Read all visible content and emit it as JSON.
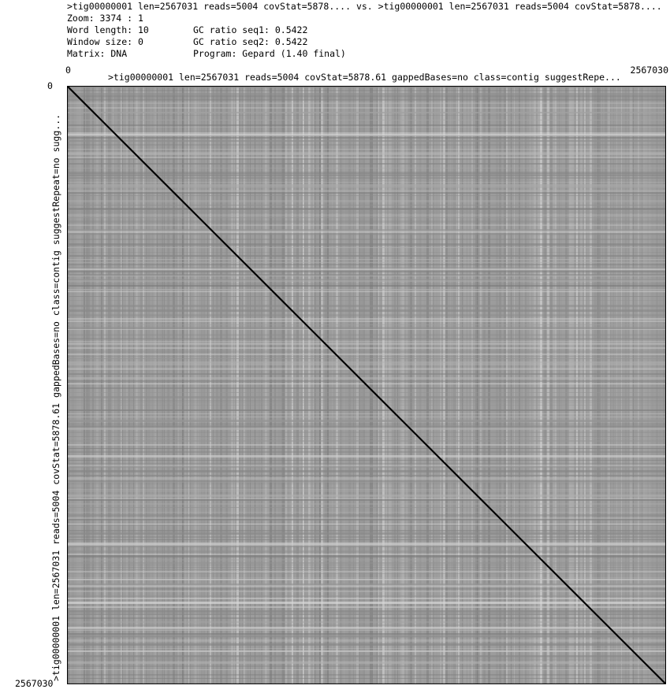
{
  "header": {
    "line1": ">tig00000001 len=2567031 reads=5004 covStat=5878.... vs. >tig00000001 len=2567031 reads=5004 covStat=5878....",
    "zoom": "Zoom: 3374 : 1",
    "word_length": "Word length: 10",
    "window_size": "Window size: 0",
    "matrix": "Matrix: DNA",
    "gc_seq1": "GC ratio seq1: 0.5422",
    "gc_seq2": "GC ratio seq2: 0.5422",
    "program": "Program: Gepard (1.40 final)"
  },
  "chart_data": {
    "type": "heatmap",
    "title": "",
    "xlabel": ">tig00000001 len=2567031 reads=5004 covStat=5878.61 gappedBases=no class=contig suggestRepe...",
    "ylabel": ">tig00000001 len=2567031 reads=5004 covStat=5878.61 gappedBases=no class=contig suggestRepeat=no sugg...",
    "x_ticks": [
      "0",
      "2567030"
    ],
    "y_ticks": [
      "0",
      "2567030"
    ],
    "xlim": [
      0,
      2567030
    ],
    "ylim": [
      0,
      2567030
    ],
    "main_diagonal": {
      "x": [
        0,
        2567030
      ],
      "y": [
        0,
        2567030
      ]
    },
    "colors": {
      "background": "#9c9c9c",
      "match": "#000000"
    }
  }
}
